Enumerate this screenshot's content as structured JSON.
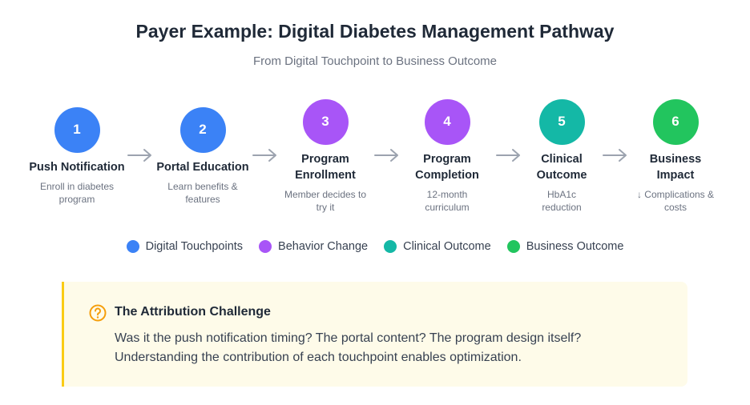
{
  "header": {
    "title": "Payer Example: Digital Diabetes Management Pathway",
    "subtitle": "From Digital Touchpoint to Business Outcome"
  },
  "steps": [
    {
      "number": 1,
      "title": [
        "Push Notification"
      ],
      "description": [
        "Enroll in diabetes",
        "program"
      ],
      "color": "#3b82f6"
    },
    {
      "number": 2,
      "title": [
        "Portal Education"
      ],
      "description": [
        "Learn benefits &",
        "features"
      ],
      "color": "#3b82f6"
    },
    {
      "number": 3,
      "title": [
        "Program",
        "Enrollment"
      ],
      "description": [
        "Member decides to",
        "try it"
      ],
      "color": "#a855f7"
    },
    {
      "number": 4,
      "title": [
        "Program",
        "Completion"
      ],
      "description": [
        "12-month",
        "curriculum"
      ],
      "color": "#a855f7"
    },
    {
      "number": 5,
      "title": [
        "Clinical",
        "Outcome"
      ],
      "description": [
        "HbA1c",
        "reduction"
      ],
      "color": "#14b8a6"
    },
    {
      "number": 6,
      "title": [
        "Business",
        "Impact"
      ],
      "description": [
        "↓ Complications &",
        "costs"
      ],
      "color": "#22c55e"
    }
  ],
  "legend": [
    {
      "label": "Digital Touchpoints",
      "color": "#3b82f6"
    },
    {
      "label": "Behavior Change",
      "color": "#a855f7"
    },
    {
      "label": "Clinical Outcome",
      "color": "#14b8a6"
    },
    {
      "label": "Business Outcome",
      "color": "#22c55e"
    }
  ],
  "callout": {
    "title": "The Attribution Challenge",
    "lines": [
      "Was it the push notification timing? The portal content? The program design itself?",
      "Understanding the contribution of each touchpoint enables optimization."
    ]
  }
}
